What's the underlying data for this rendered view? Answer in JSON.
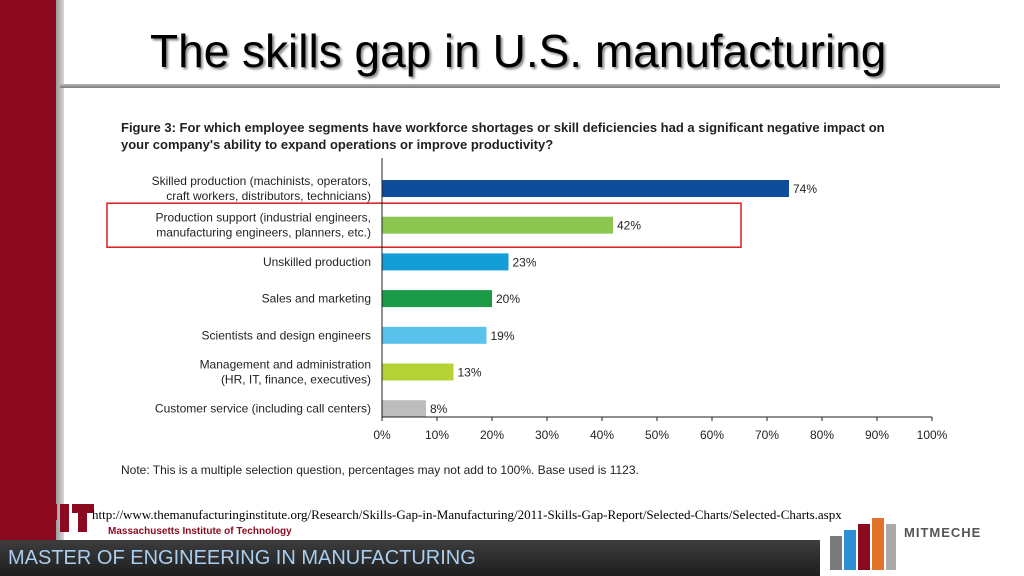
{
  "slide": {
    "title": "The skills gap in U.S. manufacturing",
    "source_url": "http://www.themanufacturinginstitute.org/Research/Skills-Gap-in-Manufacturing/2011-Skills-Gap-Report/Selected-Charts/Selected-Charts.aspx",
    "footer_program": "MASTER OF ENGINEERING IN MANUFACTURING",
    "mit_institution": "Massachusetts Institute of Technology",
    "mitmeche_label": "MITMECHE"
  },
  "chart_data": {
    "type": "bar",
    "orientation": "horizontal",
    "title": "Figure 3: For which employee segments have workforce shortages or skill deficiencies had a significant negative impact on your company's ability to expand operations or improve productivity?",
    "title_lines": [
      "Figure 3: For which employee segments have workforce shortages or skill deficiencies had a significant negative impact on",
      "your company's ability to expand operations or improve productivity?"
    ],
    "categories": [
      [
        "Skilled production (machinists, operators,",
        "craft workers, distributors, technicians)"
      ],
      [
        "Production support (industrial engineers,",
        "manufacturing engineers, planners, etc.)"
      ],
      [
        "Unskilled production"
      ],
      [
        "Sales and marketing"
      ],
      [
        "Scientists and design engineers"
      ],
      [
        "Management and administration",
        "(HR, IT, finance, executives)"
      ],
      [
        "Customer service (including call centers)"
      ]
    ],
    "values": [
      74,
      42,
      23,
      20,
      19,
      13,
      8
    ],
    "value_labels": [
      "74%",
      "42%",
      "23%",
      "20%",
      "19%",
      "13%",
      "8%"
    ],
    "bar_colors": [
      "#0f4c9a",
      "#8cc751",
      "#139ed8",
      "#1b9a48",
      "#5ac3ec",
      "#b5d334",
      "#bdbdbd"
    ],
    "highlight_index": 1,
    "highlight_color": "#e0262b",
    "xlim": [
      0,
      100
    ],
    "x_ticks": [
      0,
      10,
      20,
      30,
      40,
      50,
      60,
      70,
      80,
      90,
      100
    ],
    "x_tick_labels": [
      "0%",
      "10%",
      "20%",
      "30%",
      "40%",
      "50%",
      "60%",
      "70%",
      "80%",
      "90%",
      "100%"
    ],
    "xlabel": "",
    "ylabel": "",
    "grid": false,
    "note": "Note: This is a multiple selection question, percentages may not add to 100%. Base used is 1123."
  }
}
